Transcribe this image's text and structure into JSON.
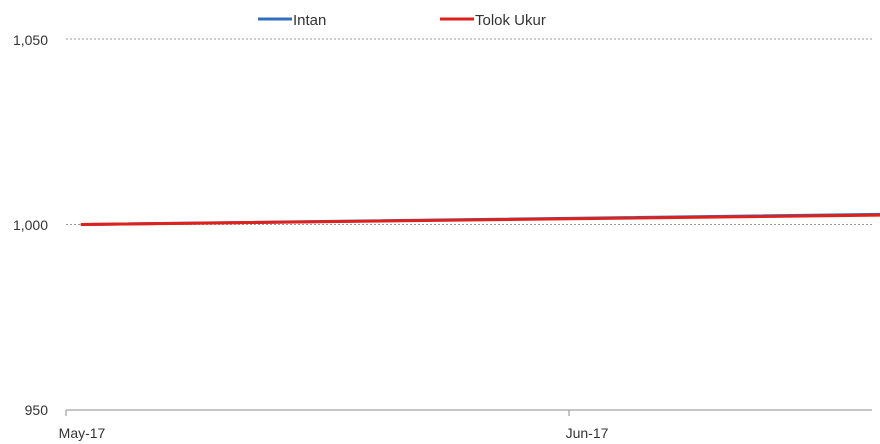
{
  "chart_data": {
    "type": "line",
    "x_ticks": [
      "May-17",
      "Jun-17"
    ],
    "y_ticks": [
      "950",
      "1,000",
      "1,050"
    ],
    "ylim": [
      950,
      1050
    ],
    "grid": "horizontal dotted",
    "legend_placement": "top",
    "series": [
      {
        "name": "Intan",
        "color": "#2f6fbd",
        "x": [
          "2017-05-01",
          "2017-06-30"
        ],
        "values": [
          1000.0,
          1003.2
        ]
      },
      {
        "name": "Tolok Ukur",
        "color": "#e0201b",
        "x": [
          "2017-05-01",
          "2017-06-30"
        ],
        "values": [
          1000.0,
          1003.0
        ]
      }
    ]
  }
}
